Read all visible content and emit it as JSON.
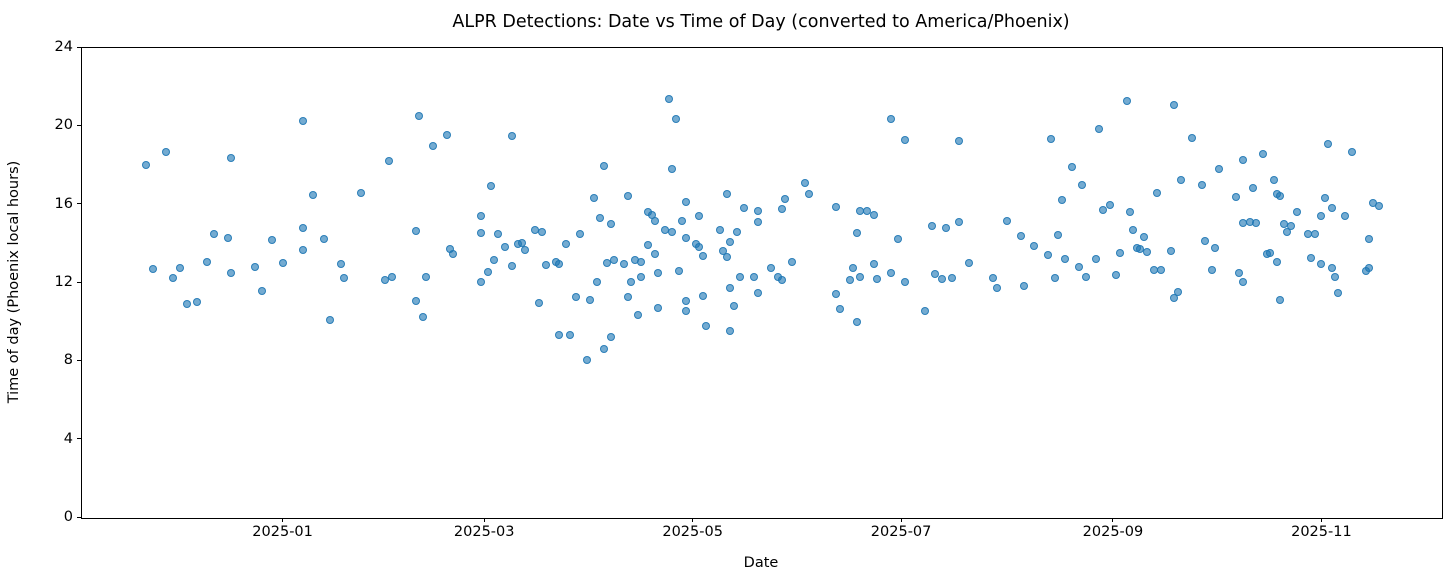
{
  "chart_data": {
    "type": "scatter",
    "title": "ALPR Detections: Date vs Time of Day (converted to America/Phoenix)",
    "xlabel": "Date",
    "ylabel": "Time of day (Phoenix local hours)",
    "x_ticks": [
      "2025-01-01",
      "2025-03-01",
      "2025-05-01",
      "2025-07-01",
      "2025-09-01",
      "2025-11-01"
    ],
    "x_tick_labels": [
      "2025-01",
      "2025-03",
      "2025-05",
      "2025-07",
      "2025-09",
      "2025-11"
    ],
    "y_ticks": [
      0,
      4,
      8,
      12,
      16,
      20,
      24
    ],
    "ylim": [
      0,
      24
    ],
    "xlim": [
      "2024-11-03",
      "2025-12-06"
    ],
    "grid": false,
    "legend": null,
    "marker_color": "#1f77b4",
    "marker_edge_color": "#1f77b4",
    "marker_alpha": 0.62,
    "marker_edge_alpha": 0.85,
    "points": [
      [
        "2024-11-22",
        17.96
      ],
      [
        "2024-11-24",
        12.65
      ],
      [
        "2024-11-28",
        18.66
      ],
      [
        "2024-11-30",
        12.2
      ],
      [
        "2024-12-02",
        12.7
      ],
      [
        "2024-12-04",
        10.88
      ],
      [
        "2024-12-07",
        10.99
      ],
      [
        "2024-12-10",
        13.04
      ],
      [
        "2024-12-12",
        14.45
      ],
      [
        "2024-12-16",
        14.25
      ],
      [
        "2024-12-17",
        18.32
      ],
      [
        "2024-12-17",
        12.44
      ],
      [
        "2024-12-24",
        12.77
      ],
      [
        "2024-12-26",
        11.54
      ],
      [
        "2024-12-29",
        14.16
      ],
      [
        "2025-01-01",
        12.95
      ],
      [
        "2025-01-07",
        20.24
      ],
      [
        "2025-01-07",
        14.77
      ],
      [
        "2025-01-07",
        13.63
      ],
      [
        "2025-01-10",
        16.46
      ],
      [
        "2025-01-13",
        14.18
      ],
      [
        "2025-01-15",
        10.06
      ],
      [
        "2025-01-18",
        12.94
      ],
      [
        "2025-01-19",
        12.19
      ],
      [
        "2025-01-24",
        16.55
      ],
      [
        "2025-01-31",
        12.09
      ],
      [
        "2025-02-01",
        18.18
      ],
      [
        "2025-02-02",
        12.27
      ],
      [
        "2025-02-09",
        14.62
      ],
      [
        "2025-02-09",
        11.03
      ],
      [
        "2025-02-10",
        20.49
      ],
      [
        "2025-02-11",
        10.21
      ],
      [
        "2025-02-12",
        12.24
      ],
      [
        "2025-02-14",
        18.95
      ],
      [
        "2025-02-18",
        19.51
      ],
      [
        "2025-02-19",
        13.67
      ],
      [
        "2025-02-20",
        13.41
      ],
      [
        "2025-02-28",
        15.39
      ],
      [
        "2025-02-28",
        14.52
      ],
      [
        "2025-02-28",
        11.98
      ],
      [
        "2025-03-02",
        12.49
      ],
      [
        "2025-03-03",
        16.9
      ],
      [
        "2025-03-04",
        13.11
      ],
      [
        "2025-03-05",
        14.45
      ],
      [
        "2025-03-07",
        13.8
      ],
      [
        "2025-03-09",
        19.46
      ],
      [
        "2025-03-09",
        12.83
      ],
      [
        "2025-03-11",
        13.92
      ],
      [
        "2025-03-12",
        13.97
      ],
      [
        "2025-03-13",
        13.62
      ],
      [
        "2025-03-16",
        14.65
      ],
      [
        "2025-03-17",
        10.94
      ],
      [
        "2025-03-18",
        14.55
      ],
      [
        "2025-03-19",
        12.89
      ],
      [
        "2025-03-22",
        13.01
      ],
      [
        "2025-03-23",
        12.94
      ],
      [
        "2025-03-23",
        9.27
      ],
      [
        "2025-03-25",
        13.94
      ],
      [
        "2025-03-26",
        9.29
      ],
      [
        "2025-03-28",
        11.25
      ],
      [
        "2025-03-29",
        14.43
      ],
      [
        "2025-03-31",
        8.0
      ],
      [
        "2025-04-01",
        11.07
      ],
      [
        "2025-04-02",
        16.3
      ],
      [
        "2025-04-03",
        11.98
      ],
      [
        "2025-04-04",
        15.25
      ],
      [
        "2025-04-05",
        17.92
      ],
      [
        "2025-04-05",
        8.56
      ],
      [
        "2025-04-06",
        12.99
      ],
      [
        "2025-04-07",
        14.95
      ],
      [
        "2025-04-07",
        9.18
      ],
      [
        "2025-04-08",
        13.11
      ],
      [
        "2025-04-11",
        12.9
      ],
      [
        "2025-04-12",
        16.41
      ],
      [
        "2025-04-12",
        11.25
      ],
      [
        "2025-04-13",
        12.0
      ],
      [
        "2025-04-14",
        13.12
      ],
      [
        "2025-04-15",
        10.31
      ],
      [
        "2025-04-16",
        13.0
      ],
      [
        "2025-04-16",
        12.24
      ],
      [
        "2025-04-18",
        15.56
      ],
      [
        "2025-04-18",
        13.89
      ],
      [
        "2025-04-19",
        15.42
      ],
      [
        "2025-04-20",
        15.1
      ],
      [
        "2025-04-20",
        13.41
      ],
      [
        "2025-04-21",
        12.48
      ],
      [
        "2025-04-21",
        10.67
      ],
      [
        "2025-04-23",
        14.67
      ],
      [
        "2025-04-24",
        21.34
      ],
      [
        "2025-04-25",
        17.76
      ],
      [
        "2025-04-25",
        14.54
      ],
      [
        "2025-04-26",
        20.32
      ],
      [
        "2025-04-27",
        12.56
      ],
      [
        "2025-04-28",
        15.1
      ],
      [
        "2025-04-29",
        16.11
      ],
      [
        "2025-04-29",
        14.23
      ],
      [
        "2025-04-29",
        11.05
      ],
      [
        "2025-04-29",
        10.53
      ],
      [
        "2025-05-02",
        13.94
      ],
      [
        "2025-05-03",
        15.39
      ],
      [
        "2025-05-03",
        13.8
      ],
      [
        "2025-05-04",
        13.34
      ],
      [
        "2025-05-04",
        11.3
      ],
      [
        "2025-05-05",
        9.75
      ],
      [
        "2025-05-09",
        14.63
      ],
      [
        "2025-05-10",
        13.6
      ],
      [
        "2025-05-11",
        16.51
      ],
      [
        "2025-05-11",
        13.29
      ],
      [
        "2025-05-12",
        14.04
      ],
      [
        "2025-05-12",
        11.69
      ],
      [
        "2025-05-12",
        9.48
      ],
      [
        "2025-05-13",
        10.77
      ],
      [
        "2025-05-14",
        14.55
      ],
      [
        "2025-05-15",
        12.25
      ],
      [
        "2025-05-16",
        15.79
      ],
      [
        "2025-05-19",
        12.25
      ],
      [
        "2025-05-20",
        15.61
      ],
      [
        "2025-05-20",
        15.05
      ],
      [
        "2025-05-20",
        11.44
      ],
      [
        "2025-05-24",
        12.71
      ],
      [
        "2025-05-26",
        12.24
      ],
      [
        "2025-05-27",
        15.75
      ],
      [
        "2025-05-27",
        12.1
      ],
      [
        "2025-05-28",
        16.24
      ],
      [
        "2025-05-30",
        13.04
      ],
      [
        "2025-06-03",
        17.07
      ],
      [
        "2025-06-04",
        16.51
      ],
      [
        "2025-06-12",
        15.85
      ],
      [
        "2025-06-12",
        11.4
      ],
      [
        "2025-06-13",
        10.61
      ],
      [
        "2025-06-16",
        12.09
      ],
      [
        "2025-06-17",
        12.73
      ],
      [
        "2025-06-18",
        14.52
      ],
      [
        "2025-06-18",
        9.94
      ],
      [
        "2025-06-19",
        15.64
      ],
      [
        "2025-06-19",
        12.27
      ],
      [
        "2025-06-21",
        15.61
      ],
      [
        "2025-06-23",
        15.44
      ],
      [
        "2025-06-23",
        12.93
      ],
      [
        "2025-06-24",
        12.15
      ],
      [
        "2025-06-28",
        20.32
      ],
      [
        "2025-06-28",
        12.44
      ],
      [
        "2025-06-30",
        14.2
      ],
      [
        "2025-07-02",
        19.25
      ],
      [
        "2025-07-02",
        11.98
      ],
      [
        "2025-07-08",
        10.5
      ],
      [
        "2025-07-10",
        14.86
      ],
      [
        "2025-07-11",
        12.42
      ],
      [
        "2025-07-13",
        12.15
      ],
      [
        "2025-07-14",
        14.76
      ],
      [
        "2025-07-16",
        12.19
      ],
      [
        "2025-07-18",
        19.18
      ],
      [
        "2025-07-18",
        15.06
      ],
      [
        "2025-07-21",
        12.99
      ],
      [
        "2025-07-28",
        12.22
      ],
      [
        "2025-07-29",
        11.71
      ],
      [
        "2025-08-01",
        15.1
      ],
      [
        "2025-08-05",
        14.35
      ],
      [
        "2025-08-06",
        11.81
      ],
      [
        "2025-08-09",
        13.85
      ],
      [
        "2025-08-13",
        13.38
      ],
      [
        "2025-08-14",
        19.32
      ],
      [
        "2025-08-15",
        12.22
      ],
      [
        "2025-08-16",
        14.38
      ],
      [
        "2025-08-17",
        16.2
      ],
      [
        "2025-08-18",
        13.19
      ],
      [
        "2025-08-20",
        17.86
      ],
      [
        "2025-08-22",
        12.75
      ],
      [
        "2025-08-23",
        16.94
      ],
      [
        "2025-08-24",
        12.27
      ],
      [
        "2025-08-27",
        13.19
      ],
      [
        "2025-08-28",
        19.81
      ],
      [
        "2025-08-29",
        15.66
      ],
      [
        "2025-08-31",
        15.92
      ],
      [
        "2025-09-02",
        12.36
      ],
      [
        "2025-09-03",
        13.48
      ],
      [
        "2025-09-05",
        21.22
      ],
      [
        "2025-09-06",
        15.59
      ],
      [
        "2025-09-07",
        14.64
      ],
      [
        "2025-09-08",
        13.75
      ],
      [
        "2025-09-09",
        13.67
      ],
      [
        "2025-09-10",
        14.28
      ],
      [
        "2025-09-11",
        13.55
      ],
      [
        "2025-09-13",
        12.61
      ],
      [
        "2025-09-14",
        16.55
      ],
      [
        "2025-09-15",
        12.63
      ],
      [
        "2025-09-18",
        13.57
      ],
      [
        "2025-09-19",
        21.02
      ],
      [
        "2025-09-19",
        11.18
      ],
      [
        "2025-09-20",
        11.5
      ],
      [
        "2025-09-21",
        17.22
      ],
      [
        "2025-09-24",
        19.37
      ],
      [
        "2025-09-27",
        16.97
      ],
      [
        "2025-09-28",
        14.08
      ],
      [
        "2025-09-30",
        12.61
      ],
      [
        "2025-10-01",
        13.75
      ],
      [
        "2025-10-02",
        17.75
      ],
      [
        "2025-10-07",
        16.36
      ],
      [
        "2025-10-08",
        12.45
      ],
      [
        "2025-10-09",
        18.25
      ],
      [
        "2025-10-09",
        15.0
      ],
      [
        "2025-10-09",
        12.0
      ],
      [
        "2025-10-11",
        15.08
      ],
      [
        "2025-10-12",
        16.8
      ],
      [
        "2025-10-13",
        15.01
      ],
      [
        "2025-10-15",
        18.54
      ],
      [
        "2025-10-16",
        13.44
      ],
      [
        "2025-10-17",
        13.48
      ],
      [
        "2025-10-18",
        17.22
      ],
      [
        "2025-10-19",
        16.48
      ],
      [
        "2025-10-19",
        13.01
      ],
      [
        "2025-10-20",
        16.41
      ],
      [
        "2025-10-20",
        11.06
      ],
      [
        "2025-10-21",
        14.95
      ],
      [
        "2025-10-22",
        14.54
      ],
      [
        "2025-10-23",
        14.86
      ],
      [
        "2025-10-25",
        15.57
      ],
      [
        "2025-10-28",
        14.47
      ],
      [
        "2025-10-29",
        13.24
      ],
      [
        "2025-10-30",
        14.47
      ],
      [
        "2025-11-01",
        15.37
      ],
      [
        "2025-11-01",
        12.94
      ],
      [
        "2025-11-02",
        16.27
      ],
      [
        "2025-11-03",
        19.03
      ],
      [
        "2025-11-04",
        15.79
      ],
      [
        "2025-11-04",
        12.73
      ],
      [
        "2025-11-05",
        12.24
      ],
      [
        "2025-11-06",
        11.45
      ],
      [
        "2025-11-08",
        15.39
      ],
      [
        "2025-11-10",
        18.66
      ],
      [
        "2025-11-14",
        12.56
      ],
      [
        "2025-11-15",
        14.18
      ],
      [
        "2025-11-15",
        12.73
      ],
      [
        "2025-11-16",
        16.02
      ],
      [
        "2025-11-18",
        15.9
      ]
    ]
  }
}
